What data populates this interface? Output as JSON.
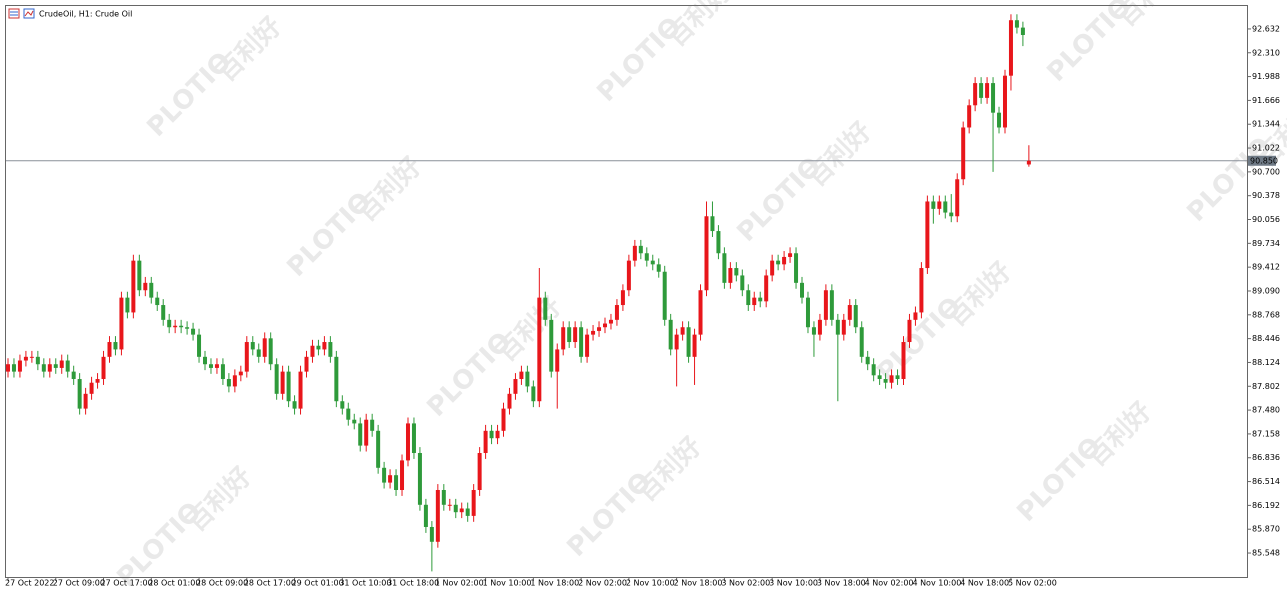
{
  "chart_data": {
    "type": "candlestick",
    "title": "CrudeOil, H1:  Crude Oil",
    "watermark": [
      "PLOTIO",
      "百利好"
    ],
    "up_color": "#e8161b",
    "down_color": "#2e9a3a",
    "grid": false,
    "ylim": [
      85.224,
      92.942
    ],
    "yticks": [
      92.632,
      {
        "value": 92.31,
        "label": "92.310"
      },
      91.988,
      91.666,
      91.344,
      91.022,
      {
        "value": 90.7,
        "label": "90.700"
      },
      90.378,
      90.056,
      89.734,
      89.412,
      {
        "value": 89.09,
        "label": "89.090"
      },
      88.768,
      88.446,
      88.124,
      87.802,
      {
        "value": 87.48,
        "label": "87.480"
      },
      87.158,
      86.836,
      86.514,
      86.192,
      {
        "value": 85.87,
        "label": "85.870"
      },
      85.548
    ],
    "current_price": {
      "value": 90.85,
      "label": "90.850"
    },
    "categories": [
      "27 Oct 2022",
      null,
      null,
      null,
      null,
      null,
      null,
      null,
      "27 Oct 09:00",
      null,
      null,
      null,
      null,
      null,
      null,
      null,
      "27 Oct 17:00",
      null,
      null,
      null,
      null,
      null,
      null,
      null,
      "28 Oct 01:00",
      null,
      null,
      null,
      null,
      null,
      null,
      null,
      "28 Oct 09:00",
      null,
      null,
      null,
      null,
      null,
      null,
      null,
      "28 Oct 17:00",
      null,
      null,
      null,
      null,
      null,
      null,
      null,
      "29 Oct 01:00",
      null,
      null,
      null,
      null,
      null,
      null,
      null,
      "31 Oct 10:00",
      null,
      null,
      null,
      null,
      null,
      null,
      null,
      "31 Oct 18:00",
      null,
      null,
      null,
      null,
      null,
      null,
      null,
      "1 Nov 02:00",
      null,
      null,
      null,
      null,
      null,
      null,
      null,
      "1 Nov 10:00",
      null,
      null,
      null,
      null,
      null,
      null,
      null,
      "1 Nov 18:00",
      null,
      null,
      null,
      null,
      null,
      null,
      null,
      "2 Nov 02:00",
      null,
      null,
      null,
      null,
      null,
      null,
      null,
      "2 Nov 10:00",
      null,
      null,
      null,
      null,
      null,
      null,
      null,
      "2 Nov 18:00",
      null,
      null,
      null,
      null,
      null,
      null,
      null,
      "3 Nov 02:00",
      null,
      null,
      null,
      null,
      null,
      null,
      null,
      "3 Nov 10:00",
      null,
      null,
      null,
      null,
      null,
      null,
      null,
      "3 Nov 18:00",
      null,
      null,
      null,
      null,
      null,
      null,
      null,
      "4 Nov 02:00",
      null,
      null,
      null,
      null,
      null,
      null,
      null,
      "4 Nov 10:00",
      null,
      null,
      null,
      null,
      null,
      null,
      null,
      "4 Nov 18:00",
      null,
      null,
      null,
      null,
      null,
      null,
      null,
      "5 Nov 02:00",
      null,
      null,
      null
    ],
    "open": [
      88.0,
      88.1,
      88.0,
      88.15,
      88.2,
      88.2,
      88.1,
      88.0,
      88.1,
      88.05,
      88.15,
      88.0,
      87.9,
      87.5,
      87.7,
      87.85,
      87.9,
      88.2,
      88.4,
      88.3,
      89.0,
      88.8,
      89.5,
      89.1,
      89.2,
      89.0,
      88.9,
      88.7,
      88.6,
      88.62,
      88.6,
      88.58,
      88.5,
      88.2,
      88.1,
      88.05,
      88.1,
      87.9,
      87.8,
      87.95,
      88.0,
      88.4,
      88.3,
      88.2,
      88.45,
      88.1,
      87.7,
      88.0,
      87.6,
      87.5,
      88.0,
      88.2,
      88.35,
      88.3,
      88.4,
      88.2,
      87.6,
      87.5,
      87.35,
      87.3,
      87.0,
      87.35,
      87.2,
      86.7,
      86.5,
      86.6,
      86.4,
      86.8,
      87.3,
      86.9,
      86.2,
      85.9,
      85.7,
      86.4,
      86.2,
      86.2,
      86.1,
      86.15,
      86.05,
      86.4,
      86.9,
      87.2,
      87.1,
      87.2,
      87.5,
      87.7,
      87.9,
      88.0,
      87.8,
      87.6,
      89.0,
      88.7,
      88.0,
      88.3,
      88.6,
      88.4,
      88.6,
      88.2,
      88.5,
      88.55,
      88.6,
      88.65,
      88.7,
      88.9,
      89.1,
      89.5,
      89.7,
      89.6,
      89.5,
      89.45,
      89.35,
      88.7,
      88.3,
      88.5,
      88.6,
      88.2,
      88.5,
      89.1,
      90.1,
      89.9,
      89.6,
      89.2,
      89.4,
      89.3,
      89.1,
      88.9,
      89.0,
      88.95,
      89.3,
      89.5,
      89.45,
      89.55,
      89.6,
      89.2,
      89.0,
      88.6,
      88.5,
      88.7,
      89.1,
      88.7,
      88.5,
      88.7,
      88.9,
      88.6,
      88.2,
      88.1,
      87.95,
      87.9,
      87.85,
      87.95,
      87.9,
      88.4,
      88.7,
      88.8,
      89.4,
      90.3,
      90.2,
      90.3,
      90.15,
      90.1,
      90.6,
      91.3,
      91.6,
      91.9,
      91.7,
      91.9,
      91.5,
      91.3,
      92.0,
      92.75,
      92.65,
      90.8
    ],
    "high": [
      88.18,
      88.18,
      88.23,
      88.28,
      88.28,
      88.28,
      88.18,
      88.18,
      88.18,
      88.23,
      88.23,
      88.08,
      87.98,
      87.78,
      87.93,
      87.98,
      88.28,
      88.48,
      88.48,
      89.08,
      89.08,
      89.58,
      89.58,
      89.28,
      89.28,
      89.08,
      88.98,
      88.78,
      88.7,
      88.7,
      88.68,
      88.66,
      88.58,
      88.28,
      88.18,
      88.18,
      88.18,
      87.98,
      88.03,
      88.08,
      88.48,
      88.48,
      88.38,
      88.53,
      88.53,
      88.18,
      88.08,
      88.08,
      87.68,
      88.08,
      88.28,
      88.43,
      88.43,
      88.48,
      88.48,
      88.28,
      87.68,
      87.58,
      87.43,
      87.38,
      87.43,
      87.43,
      87.28,
      86.78,
      86.68,
      86.68,
      86.88,
      87.38,
      87.38,
      86.98,
      86.28,
      85.98,
      86.48,
      86.48,
      86.28,
      86.28,
      86.23,
      86.23,
      86.48,
      86.98,
      87.28,
      87.28,
      87.28,
      87.58,
      87.78,
      87.98,
      88.08,
      88.08,
      87.88,
      89.4,
      89.08,
      88.78,
      88.38,
      88.68,
      88.68,
      88.68,
      88.68,
      88.58,
      88.63,
      88.68,
      88.73,
      88.78,
      88.98,
      89.18,
      89.58,
      89.78,
      89.78,
      89.68,
      89.58,
      89.53,
      89.43,
      88.78,
      88.58,
      88.68,
      88.68,
      88.58,
      89.18,
      90.3,
      90.3,
      89.98,
      89.68,
      89.48,
      89.48,
      89.38,
      89.18,
      89.08,
      89.08,
      89.38,
      89.58,
      89.58,
      89.63,
      89.68,
      89.68,
      89.28,
      89.08,
      88.68,
      88.78,
      89.18,
      89.18,
      88.78,
      88.78,
      88.98,
      88.98,
      88.68,
      88.28,
      88.18,
      88.03,
      87.98,
      88.03,
      88.03,
      88.48,
      88.78,
      88.88,
      89.48,
      90.38,
      90.38,
      90.38,
      90.38,
      90.4,
      90.68,
      91.38,
      91.68,
      91.98,
      91.98,
      91.98,
      91.98,
      91.58,
      92.08,
      92.83,
      92.83,
      92.73,
      91.06
    ],
    "low": [
      87.92,
      87.92,
      87.92,
      88.07,
      88.12,
      88.02,
      87.92,
      87.92,
      87.97,
      87.97,
      87.92,
      87.82,
      87.42,
      87.42,
      87.62,
      87.77,
      87.82,
      88.12,
      88.22,
      88.22,
      88.72,
      88.72,
      89.02,
      89.02,
      88.92,
      88.82,
      88.62,
      88.52,
      88.52,
      88.52,
      88.5,
      88.42,
      88.12,
      88.02,
      87.97,
      87.97,
      87.82,
      87.72,
      87.72,
      87.87,
      87.92,
      88.22,
      88.12,
      88.12,
      88.02,
      87.62,
      87.62,
      87.52,
      87.42,
      87.42,
      87.92,
      88.12,
      88.22,
      88.22,
      88.12,
      87.52,
      87.42,
      87.27,
      87.22,
      86.92,
      86.92,
      87.12,
      86.62,
      86.42,
      86.42,
      86.32,
      86.32,
      86.72,
      86.82,
      86.12,
      85.82,
      85.3,
      85.62,
      86.12,
      86.12,
      86.02,
      86.02,
      85.97,
      85.97,
      86.32,
      86.82,
      87.02,
      87.02,
      87.12,
      87.42,
      87.62,
      87.82,
      87.72,
      87.52,
      87.52,
      88.62,
      87.92,
      87.5,
      88.22,
      88.32,
      88.32,
      88.12,
      88.12,
      88.42,
      88.47,
      88.52,
      88.57,
      88.62,
      88.82,
      89.02,
      89.42,
      89.52,
      89.42,
      89.37,
      89.27,
      88.62,
      88.22,
      87.8,
      88.42,
      88.12,
      87.82,
      88.42,
      89.02,
      89.82,
      89.52,
      89.12,
      89.12,
      89.22,
      89.02,
      88.82,
      88.82,
      88.87,
      88.87,
      89.22,
      89.37,
      89.37,
      89.47,
      89.12,
      88.92,
      88.52,
      88.2,
      88.42,
      88.62,
      88.62,
      87.6,
      88.42,
      88.62,
      88.52,
      88.12,
      88.02,
      87.87,
      87.82,
      87.77,
      87.77,
      87.82,
      87.82,
      88.32,
      88.62,
      88.72,
      89.32,
      90.0,
      90.12,
      90.07,
      90.02,
      90.02,
      90.52,
      91.22,
      91.52,
      91.62,
      91.62,
      90.7,
      91.22,
      91.22,
      91.8,
      92.57,
      92.4,
      90.77
    ],
    "close": [
      88.1,
      88.0,
      88.15,
      88.2,
      88.2,
      88.1,
      88.0,
      88.1,
      88.05,
      88.15,
      88.0,
      87.9,
      87.5,
      87.7,
      87.85,
      87.9,
      88.2,
      88.4,
      88.3,
      89.0,
      88.8,
      89.5,
      89.1,
      89.2,
      89.0,
      88.9,
      88.7,
      88.6,
      88.62,
      88.6,
      88.58,
      88.5,
      88.2,
      88.1,
      88.05,
      88.1,
      87.9,
      87.8,
      87.95,
      88.0,
      88.4,
      88.3,
      88.2,
      88.45,
      88.1,
      87.7,
      88.0,
      87.6,
      87.5,
      88.0,
      88.2,
      88.35,
      88.3,
      88.4,
      88.2,
      87.6,
      87.5,
      87.35,
      87.3,
      87.0,
      87.35,
      87.2,
      86.7,
      86.5,
      86.6,
      86.4,
      86.8,
      87.3,
      86.9,
      86.2,
      85.9,
      85.7,
      86.4,
      86.2,
      86.2,
      86.1,
      86.15,
      86.05,
      86.4,
      86.9,
      87.2,
      87.1,
      87.2,
      87.5,
      87.7,
      87.9,
      88.0,
      87.8,
      87.6,
      89.0,
      88.7,
      88.0,
      88.3,
      88.6,
      88.4,
      88.6,
      88.2,
      88.5,
      88.55,
      88.6,
      88.65,
      88.7,
      88.9,
      89.1,
      89.5,
      89.7,
      89.6,
      89.5,
      89.45,
      89.35,
      88.7,
      88.3,
      88.5,
      88.6,
      88.2,
      88.5,
      89.1,
      90.1,
      89.9,
      89.6,
      89.2,
      89.4,
      89.3,
      89.1,
      88.9,
      89.0,
      88.95,
      89.3,
      89.5,
      89.45,
      89.55,
      89.6,
      89.2,
      89.0,
      88.6,
      88.5,
      88.7,
      89.1,
      88.7,
      88.5,
      88.7,
      88.9,
      88.6,
      88.2,
      88.1,
      87.95,
      87.9,
      87.85,
      87.95,
      87.9,
      88.4,
      88.7,
      88.8,
      89.4,
      90.3,
      90.2,
      90.3,
      90.15,
      90.1,
      90.6,
      91.3,
      91.6,
      91.9,
      91.7,
      91.9,
      91.5,
      91.3,
      92.0,
      92.75,
      92.65,
      92.55,
      90.85
    ]
  }
}
